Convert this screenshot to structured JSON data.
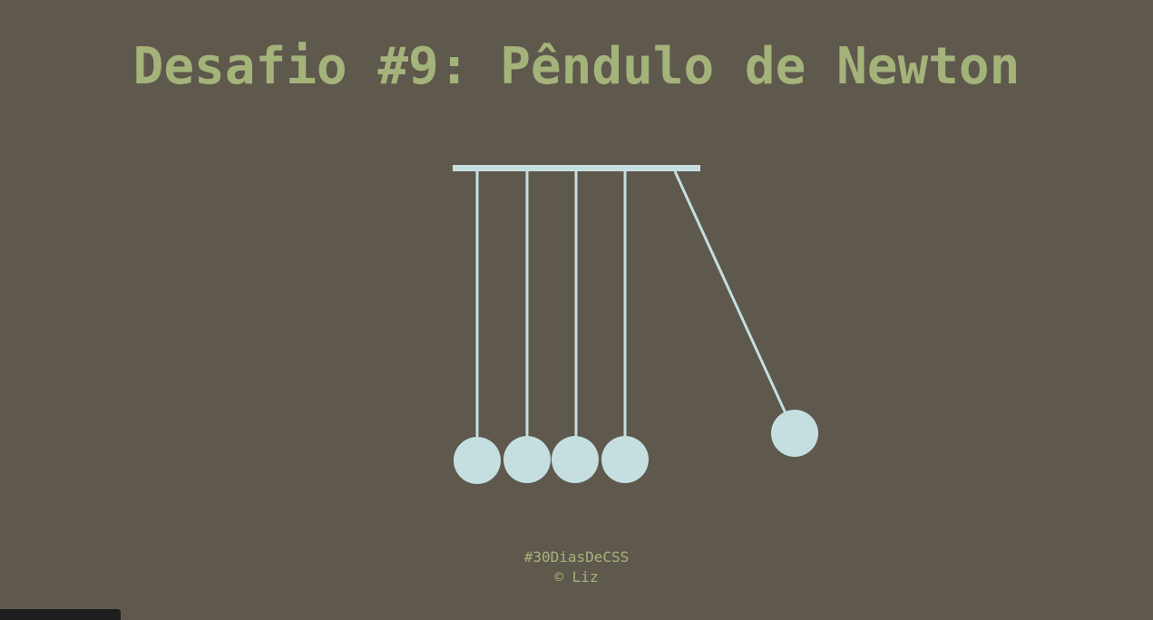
{
  "title": "Desafio #9: Pêndulo de Newton",
  "footer": {
    "hashtag": "#30DiasDeCSS",
    "copyright": "© Liz"
  },
  "colors": {
    "background": "#5f584d",
    "accent": "#a4b37a",
    "pendulum": "#c5dfe0"
  },
  "cradle": {
    "ball_count": 5,
    "swinging_ball": "right"
  }
}
